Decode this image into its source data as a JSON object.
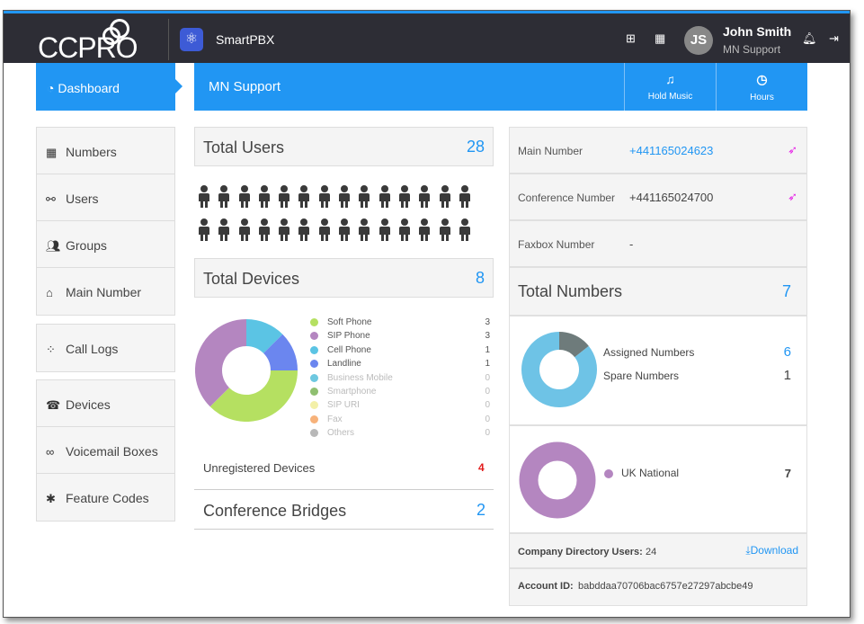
{
  "topbar": {
    "logo_text": "CCPRO",
    "app_name": "SmartPBX",
    "avatar_initials": "JS",
    "user_name": "John Smith",
    "user_role": "MN Support"
  },
  "sidebar": {
    "active": {
      "label": "Dashboard"
    },
    "groups": [
      [
        {
          "label": "Numbers",
          "icon": "grid-icon"
        },
        {
          "label": "Users",
          "icon": "users-icon"
        },
        {
          "label": "Groups",
          "icon": "groups-icon"
        },
        {
          "label": "Main Number",
          "icon": "home-icon"
        }
      ],
      [
        {
          "label": "Call Logs",
          "icon": "call-logs-icon"
        }
      ],
      [
        {
          "label": "Devices",
          "icon": "devices-icon"
        },
        {
          "label": "Voicemail Boxes",
          "icon": "voicemail-icon"
        },
        {
          "label": "Feature Codes",
          "icon": "asterisk-icon"
        }
      ]
    ]
  },
  "header": {
    "title": "MN Support",
    "hold_music": "Hold Music",
    "hours": "Hours"
  },
  "users": {
    "title": "Total Users",
    "count": "28",
    "people_count": 28
  },
  "devices": {
    "title": "Total Devices",
    "count": "8",
    "legend": [
      {
        "label": "Soft Phone",
        "value": "3",
        "color": "#b5e061",
        "active": true
      },
      {
        "label": "SIP Phone",
        "value": "3",
        "color": "#b486c0",
        "active": true
      },
      {
        "label": "Cell Phone",
        "value": "1",
        "color": "#5bc4e4",
        "active": true
      },
      {
        "label": "Landline",
        "value": "1",
        "color": "#6b86ef",
        "active": true
      },
      {
        "label": "Business Mobile",
        "value": "0",
        "color": "#6ec8e0",
        "active": false
      },
      {
        "label": "Smartphone",
        "value": "0",
        "color": "#8fbf70",
        "active": false
      },
      {
        "label": "SIP URI",
        "value": "0",
        "color": "#f3f0a8",
        "active": false
      },
      {
        "label": "Fax",
        "value": "0",
        "color": "#f7b27a",
        "active": false
      },
      {
        "label": "Others",
        "value": "0",
        "color": "#b8b8b8",
        "active": false
      }
    ],
    "unregistered_label": "Unregistered Devices",
    "unregistered_value": "4"
  },
  "conference": {
    "title": "Conference Bridges",
    "count": "2"
  },
  "numbers": {
    "main_label": "Main Number",
    "main_value": "+441165024623",
    "conf_label": "Conference Number",
    "conf_value": "+441165024700",
    "fax_label": "Faxbox Number",
    "fax_value": "-",
    "total_title": "Total Numbers",
    "total_count": "7",
    "assigned_label": "Assigned Numbers",
    "assigned_value": "6",
    "spare_label": "Spare Numbers",
    "spare_value": "1",
    "uk_label": "UK National",
    "uk_value": "7"
  },
  "footer": {
    "directory_label": "Company Directory Users:",
    "directory_value": "24",
    "download_label": "Download",
    "account_label": "Account ID:",
    "account_value": "babddaa70706bac6757e27297abcbe49"
  }
}
